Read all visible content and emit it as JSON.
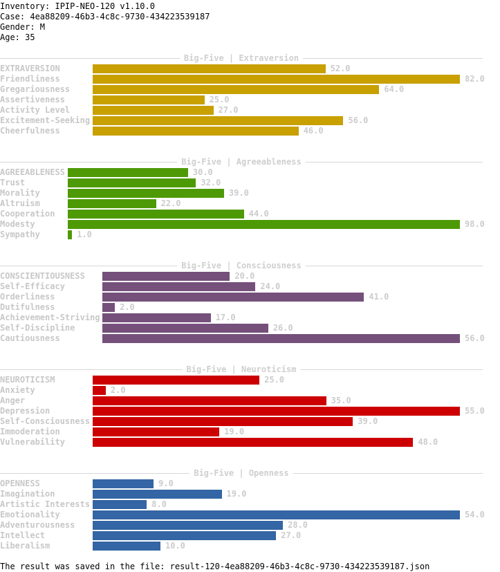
{
  "header": {
    "inventory": "Inventory: IPIP-NEO-120 v1.10.0",
    "case": "Case: 4ea88209-46b3-4c8c-9730-434223539187",
    "gender": "Gender: M",
    "age": "Age: 35"
  },
  "sections": [
    {
      "title": "Big-Five | Extraversion",
      "color": "#c8a000",
      "bar_start_char": 19,
      "max": 82.0,
      "items": [
        {
          "label": "EXTRAVERSION",
          "value": 52.0,
          "value_text": "52.0"
        },
        {
          "label": "Friendliness",
          "value": 82.0,
          "value_text": "82.0"
        },
        {
          "label": "Gregariousness",
          "value": 64.0,
          "value_text": "64.0"
        },
        {
          "label": "Assertiveness",
          "value": 25.0,
          "value_text": "25.0"
        },
        {
          "label": "Activity Level",
          "value": 27.0,
          "value_text": "27.0"
        },
        {
          "label": "Excitement-Seeking",
          "value": 56.0,
          "value_text": "56.0"
        },
        {
          "label": "Cheerfulness",
          "value": 46.0,
          "value_text": "46.0"
        }
      ]
    },
    {
      "title": "Big-Five | Agreeableness",
      "color": "#4e9a06",
      "bar_start_char": 14,
      "max": 98.0,
      "items": [
        {
          "label": "AGREEABLENESS",
          "value": 30.0,
          "value_text": "30.0"
        },
        {
          "label": "Trust",
          "value": 32.0,
          "value_text": "32.0"
        },
        {
          "label": "Morality",
          "value": 39.0,
          "value_text": "39.0"
        },
        {
          "label": "Altruism",
          "value": 22.0,
          "value_text": "22.0"
        },
        {
          "label": "Cooperation",
          "value": 44.0,
          "value_text": "44.0"
        },
        {
          "label": "Modesty",
          "value": 98.0,
          "value_text": "98.0"
        },
        {
          "label": "Sympathy",
          "value": 1.0,
          "value_text": "1.0"
        }
      ]
    },
    {
      "title": "Big-Five | Consciousness",
      "color": "#75507b",
      "bar_start_char": 21,
      "max": 56.0,
      "items": [
        {
          "label": "CONSCIENTIOUSNESS",
          "value": 20.0,
          "value_text": "20.0"
        },
        {
          "label": "Self-Efficacy",
          "value": 24.0,
          "value_text": "24.0"
        },
        {
          "label": "Orderliness",
          "value": 41.0,
          "value_text": "41.0"
        },
        {
          "label": "Dutifulness",
          "value": 2.0,
          "value_text": "2.0"
        },
        {
          "label": "Achievement-Striving",
          "value": 17.0,
          "value_text": "17.0"
        },
        {
          "label": "Self-Discipline",
          "value": 26.0,
          "value_text": "26.0"
        },
        {
          "label": "Cautiousness",
          "value": 56.0,
          "value_text": "56.0"
        }
      ]
    },
    {
      "title": "Big-Five | Neuroticism",
      "color": "#cc0000",
      "bar_start_char": 19,
      "max": 55.0,
      "items": [
        {
          "label": "NEUROTICISM",
          "value": 25.0,
          "value_text": "25.0"
        },
        {
          "label": "Anxiety",
          "value": 2.0,
          "value_text": "2.0"
        },
        {
          "label": "Anger",
          "value": 35.0,
          "value_text": "35.0"
        },
        {
          "label": "Depression",
          "value": 55.0,
          "value_text": "55.0"
        },
        {
          "label": "Self-Consciousness",
          "value": 39.0,
          "value_text": "39.0"
        },
        {
          "label": "Immoderation",
          "value": 19.0,
          "value_text": "19.0"
        },
        {
          "label": "Vulnerability",
          "value": 48.0,
          "value_text": "48.0"
        }
      ]
    },
    {
      "title": "Big-Five | Openness",
      "color": "#3465a4",
      "bar_start_char": 19,
      "max": 54.0,
      "items": [
        {
          "label": "OPENNESS",
          "value": 9.0,
          "value_text": "9.0"
        },
        {
          "label": "Imagination",
          "value": 19.0,
          "value_text": "19.0"
        },
        {
          "label": "Artistic Interests",
          "value": 8.0,
          "value_text": "8.0"
        },
        {
          "label": "Emotionality",
          "value": 54.0,
          "value_text": "54.0"
        },
        {
          "label": "Adventurousness",
          "value": 28.0,
          "value_text": "28.0"
        },
        {
          "label": "Intellect",
          "value": 27.0,
          "value_text": "27.0"
        },
        {
          "label": "Liberalism",
          "value": 10.0,
          "value_text": "10.0"
        }
      ]
    }
  ],
  "footer": "The result was saved in the file: result-120-4ea88209-46b3-4c8c-9730-434223539187.json"
}
